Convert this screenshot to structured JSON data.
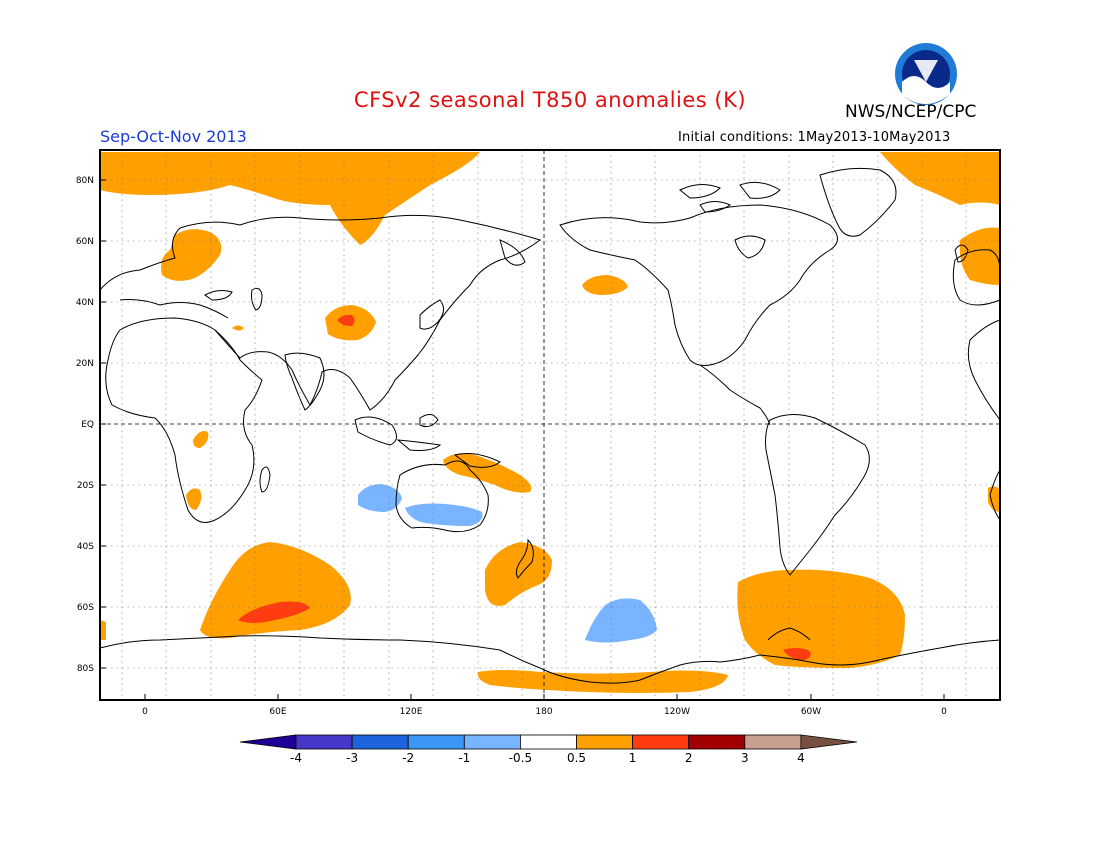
{
  "header": {
    "title": "CFSv2 seasonal T850 anomalies (K)",
    "agency": "NWS/NCEP/CPC",
    "season": "Sep-Oct-Nov 2013",
    "initial_conditions": "Initial conditions: 1May2013-10May2013",
    "logo_text": "NOAA"
  },
  "map": {
    "lat_labels": [
      "80N",
      "60N",
      "40N",
      "20N",
      "EQ",
      "20S",
      "40S",
      "60S",
      "80S"
    ],
    "lon_labels": [
      "0",
      "60E",
      "120E",
      "180",
      "120W",
      "60W",
      "0"
    ],
    "colors": {
      "ocean_land_bg": "#ffffff",
      "warm_1": "#ffa000",
      "warm_2": "#ff3c10",
      "cool_1": "#78b4ff",
      "coast": "#000000"
    }
  },
  "colorbar": {
    "labels": [
      "-4",
      "-3",
      "-2",
      "-1",
      "-0.5",
      "0.5",
      "1",
      "2",
      "3",
      "4"
    ],
    "colors": [
      "#1e0096",
      "#4637c8",
      "#1e64dc",
      "#3c96f5",
      "#78b4ff",
      "#ffffff",
      "#ffa000",
      "#ff3c10",
      "#a00000",
      "#c8a090",
      "#785040"
    ]
  }
}
